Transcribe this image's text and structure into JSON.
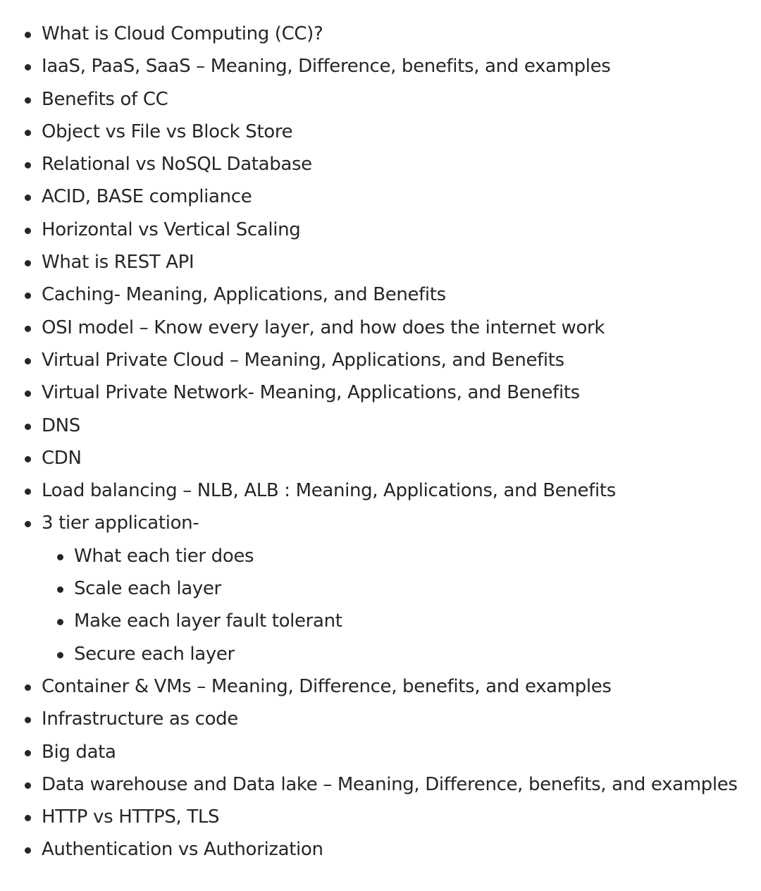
{
  "topics": [
    "What is Cloud Computing (CC)?",
    "IaaS, PaaS, SaaS – Meaning, Difference, benefits, and examples",
    "Benefits of CC",
    "Object vs File vs Block Store",
    "Relational vs NoSQL Database",
    "ACID, BASE compliance",
    "Horizontal vs Vertical Scaling",
    "What is REST API",
    "Caching- Meaning, Applications, and Benefits",
    "OSI model – Know every layer, and how does the internet work",
    "Virtual Private Cloud – Meaning, Applications, and Benefits",
    "Virtual Private Network- Meaning, Applications, and Benefits",
    "DNS",
    "CDN",
    "Load balancing – NLB, ALB : Meaning, Applications, and Benefits",
    "3 tier application-"
  ],
  "three_tier_subtopics": [
    "What each tier does",
    "Scale each layer",
    "Make each layer fault tolerant",
    "Secure each layer"
  ],
  "more_topics": [
    "Container & VMs – Meaning, Difference, benefits, and examples",
    "Infrastructure as code",
    "Big data",
    "Data warehouse and Data lake – Meaning, Difference, benefits, and examples",
    "HTTP vs HTTPS, TLS",
    "Authentication vs Authorization"
  ]
}
